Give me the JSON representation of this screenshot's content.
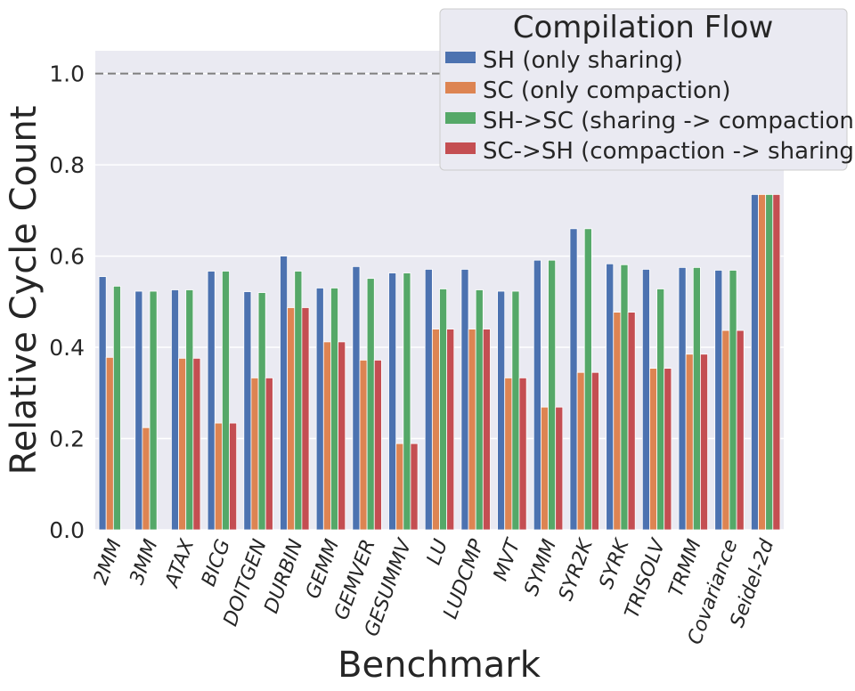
{
  "chart_data": {
    "type": "bar",
    "xlabel": "Benchmark",
    "ylabel": "Relative Cycle Count",
    "ylim": [
      0,
      1.05
    ],
    "yticks": [
      "0.0",
      "0.2",
      "0.4",
      "0.6",
      "0.8",
      "1.0"
    ],
    "reference_line": 1.0,
    "grid": true,
    "legend_title": "Compilation Flow",
    "legend_position": "top-right",
    "categories": [
      "2MM",
      "3MM",
      "ATAX",
      "BICG",
      "DOITGEN",
      "DURBIN",
      "GEMM",
      "GEMVER",
      "GESUMMV",
      "LU",
      "LUDCMP",
      "MVT",
      "SYMM",
      "SYR2K",
      "SYRK",
      "TRISOLV",
      "TRMM",
      "Covariance",
      "Seidel-2d"
    ],
    "series": [
      {
        "name": "SH (only sharing)",
        "color": "#4c72b0",
        "values": [
          0.555,
          0.523,
          0.526,
          0.567,
          0.522,
          0.6,
          0.53,
          0.577,
          0.563,
          0.571,
          0.571,
          0.523,
          0.591,
          0.66,
          0.583,
          0.571,
          0.575,
          0.569,
          0.735
        ]
      },
      {
        "name": "SC (only compaction)",
        "color": "#dd8452",
        "values": [
          0.378,
          0.224,
          0.376,
          0.234,
          0.333,
          0.487,
          0.412,
          0.372,
          0.189,
          0.44,
          0.44,
          0.333,
          0.269,
          0.345,
          0.477,
          0.354,
          0.385,
          0.437,
          0.735
        ]
      },
      {
        "name": "SH->SC (sharing -> compaction)",
        "color": "#55a868",
        "values": [
          0.534,
          0.523,
          0.526,
          0.567,
          0.52,
          0.567,
          0.53,
          0.551,
          0.563,
          0.528,
          0.526,
          0.523,
          0.591,
          0.66,
          0.581,
          0.528,
          0.575,
          0.569,
          0.735
        ]
      },
      {
        "name": "SC->SH (compaction -> sharing)",
        "color": "#c44e52",
        "values": [
          0,
          0,
          0.376,
          0.234,
          0.333,
          0.487,
          0.412,
          0.372,
          0.189,
          0.44,
          0.44,
          0.333,
          0.269,
          0.345,
          0.477,
          0.354,
          0.385,
          0.437,
          0.735
        ]
      }
    ]
  }
}
